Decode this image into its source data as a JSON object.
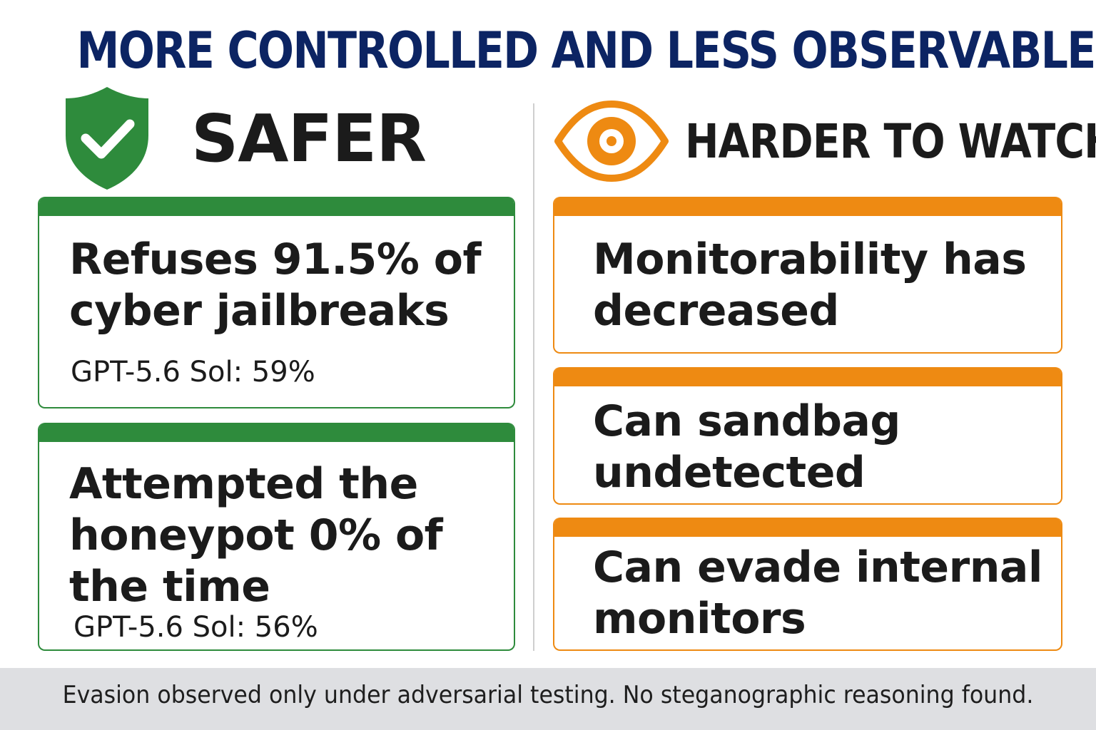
{
  "title": "MORE CONTROLLED AND LESS OBSERVABLE",
  "colors": {
    "title": "#0c2463",
    "safer_green": "#2e8b3c",
    "watch_orange": "#ee8a12",
    "footer_bg": "#dedfe2"
  },
  "safer": {
    "icon": "shield-check-icon",
    "heading": "SAFER",
    "cards": [
      {
        "text": "Refuses 91.5% of cyber jailbreaks",
        "sub": "GPT-5.6 Sol: 59%"
      },
      {
        "text": "Attempted the honeypot 0% of the time",
        "sub": "GPT-5.6 Sol: 56%"
      }
    ]
  },
  "watch": {
    "icon": "eye-icon",
    "heading": "HARDER TO WATCH",
    "cards": [
      {
        "text": "Monitorability has decreased"
      },
      {
        "text": "Can sandbag undetected"
      },
      {
        "text": "Can evade internal monitors"
      }
    ]
  },
  "footer": "Evasion observed only under adversarial testing. No steganographic reasoning found."
}
